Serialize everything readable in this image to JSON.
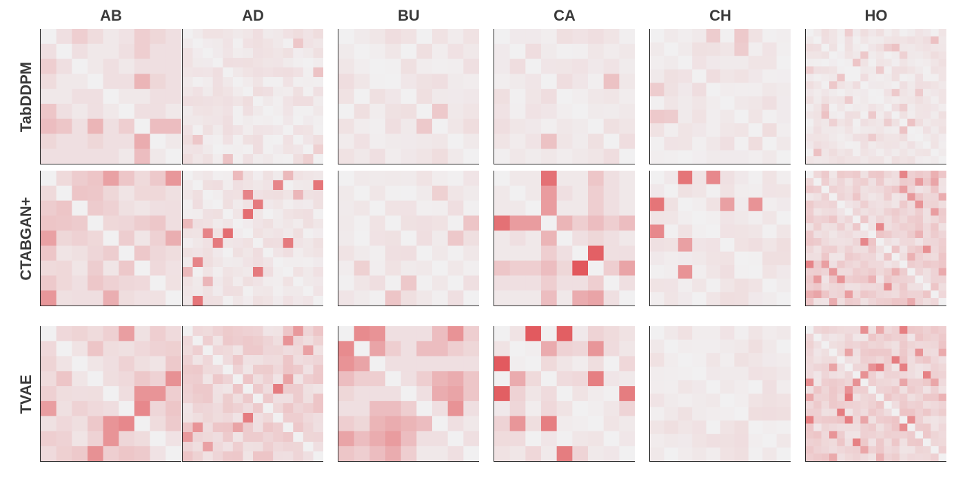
{
  "chart_data": {
    "type": "heatmap",
    "description_note": "",
    "columns": [
      "AB",
      "AD",
      "BU",
      "CA",
      "CH",
      "HO"
    ],
    "rows": [
      "TabDDPM",
      "CTABGAN+",
      "TVAE"
    ],
    "color_low": "#f1f0f1",
    "color_high": "#e0474c",
    "vmin": 0,
    "vmax": 1,
    "grid": false,
    "legend": "none",
    "panels": [
      [
        {
          "n": 9,
          "values": [
            [
              0.0,
              0.1,
              0.2,
              0.12,
              0.05,
              0.08,
              0.2,
              0.15,
              0.1
            ],
            [
              0.1,
              0.0,
              0.1,
              0.05,
              0.05,
              0.1,
              0.2,
              0.1,
              0.1
            ],
            [
              0.2,
              0.1,
              0.0,
              0.05,
              0.1,
              0.05,
              0.1,
              0.1,
              0.1
            ],
            [
              0.12,
              0.05,
              0.05,
              0.0,
              0.1,
              0.1,
              0.35,
              0.15,
              0.1
            ],
            [
              0.05,
              0.05,
              0.1,
              0.1,
              0.0,
              0.05,
              0.05,
              0.1,
              0.1
            ],
            [
              0.25,
              0.1,
              0.05,
              0.1,
              0.05,
              0.0,
              0.1,
              0.1,
              0.05
            ],
            [
              0.3,
              0.25,
              0.1,
              0.35,
              0.1,
              0.2,
              0.0,
              0.3,
              0.3
            ],
            [
              0.15,
              0.1,
              0.1,
              0.15,
              0.1,
              0.1,
              0.4,
              0.0,
              0.05
            ],
            [
              0.1,
              0.1,
              0.1,
              0.1,
              0.1,
              0.05,
              0.3,
              0.05,
              0.0
            ]
          ]
        },
        {
          "n": 14,
          "values": "generated-low"
        },
        {
          "n": 9,
          "values": "generated-low"
        },
        {
          "n": 9,
          "values": "generated-low"
        },
        {
          "n": 10,
          "values": "generated-low"
        },
        {
          "n": 18,
          "values": "generated-low"
        }
      ],
      [
        {
          "n": 9,
          "values": "generated-mid"
        },
        {
          "n": 14,
          "values": "generated-sparse"
        },
        {
          "n": 9,
          "values": "generated-low"
        },
        {
          "n": 9,
          "values": [
            [
              0.0,
              0.05,
              0.05,
              0.75,
              0.05,
              0.05,
              0.25,
              0.1,
              0.05
            ],
            [
              0.05,
              0.0,
              0.05,
              0.5,
              0.1,
              0.05,
              0.2,
              0.1,
              0.05
            ],
            [
              0.05,
              0.05,
              0.0,
              0.5,
              0.05,
              0.05,
              0.2,
              0.1,
              0.05
            ],
            [
              0.75,
              0.5,
              0.5,
              0.0,
              0.35,
              0.2,
              0.3,
              0.2,
              0.3
            ],
            [
              0.05,
              0.1,
              0.05,
              0.35,
              0.0,
              0.1,
              0.15,
              0.1,
              0.05
            ],
            [
              0.05,
              0.05,
              0.05,
              0.2,
              0.1,
              0.0,
              0.85,
              0.1,
              0.1
            ],
            [
              0.25,
              0.2,
              0.2,
              0.3,
              0.15,
              0.9,
              0.0,
              0.2,
              0.45
            ],
            [
              0.1,
              0.1,
              0.1,
              0.2,
              0.1,
              0.1,
              0.2,
              0.0,
              0.1
            ],
            [
              0.05,
              0.05,
              0.05,
              0.3,
              0.05,
              0.4,
              0.45,
              0.1,
              0.0
            ]
          ]
        },
        {
          "n": 10,
          "values": "generated-sparse"
        },
        {
          "n": 18,
          "values": "generated-mid"
        }
      ],
      [
        {
          "n": 9,
          "values": "generated-mid"
        },
        {
          "n": 14,
          "values": "generated-mid"
        },
        {
          "n": 9,
          "values": [
            [
              0.0,
              0.6,
              0.55,
              0.1,
              0.1,
              0.1,
              0.3,
              0.55,
              0.2
            ],
            [
              0.6,
              0.0,
              0.45,
              0.2,
              0.1,
              0.3,
              0.3,
              0.2,
              0.15
            ],
            [
              0.55,
              0.45,
              0.0,
              0.1,
              0.1,
              0.1,
              0.1,
              0.1,
              0.1
            ],
            [
              0.3,
              0.2,
              0.2,
              0.0,
              0.1,
              0.2,
              0.35,
              0.4,
              0.25
            ],
            [
              0.15,
              0.1,
              0.1,
              0.1,
              0.0,
              0.1,
              0.4,
              0.45,
              0.25
            ],
            [
              0.1,
              0.1,
              0.3,
              0.3,
              0.2,
              0.0,
              0.1,
              0.55,
              0.1
            ],
            [
              0.2,
              0.15,
              0.35,
              0.4,
              0.35,
              0.3,
              0.0,
              0.1,
              0.05
            ],
            [
              0.45,
              0.3,
              0.4,
              0.5,
              0.3,
              0.1,
              0.1,
              0.0,
              0.1
            ],
            [
              0.25,
              0.2,
              0.3,
              0.4,
              0.2,
              0.05,
              0.05,
              0.1,
              0.0
            ]
          ]
        },
        {
          "n": 9,
          "values": "generated-ca"
        },
        {
          "n": 10,
          "values": "generated-sparse"
        },
        {
          "n": 18,
          "values": "generated-mid"
        }
      ]
    ]
  }
}
